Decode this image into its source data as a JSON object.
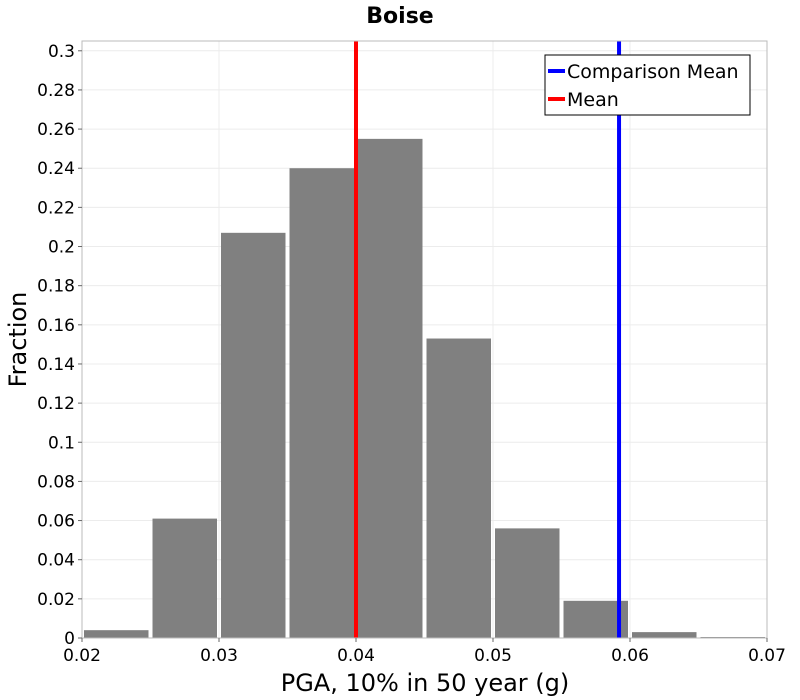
{
  "chart_data": {
    "type": "bar",
    "title": "Boise",
    "xlabel": "PGA, 10% in 50 year (g)",
    "ylabel": "Fraction",
    "xlim": [
      0.02,
      0.07
    ],
    "ylim": [
      0,
      0.305
    ],
    "xticks": [
      0.02,
      0.03,
      0.04,
      0.05,
      0.06,
      0.07
    ],
    "xtick_labels": [
      "0.02",
      "0.03",
      "0.04",
      "0.05",
      "0.06",
      "0.07"
    ],
    "yticks": [
      0,
      0.02,
      0.04,
      0.06,
      0.08,
      0.1,
      0.12,
      0.14,
      0.16,
      0.18,
      0.2,
      0.22,
      0.24,
      0.26,
      0.28,
      0.3
    ],
    "ytick_labels": [
      "0",
      "0.02",
      "0.04",
      "0.06",
      "0.08",
      "0.1",
      "0.12",
      "0.14",
      "0.16",
      "0.18",
      "0.2",
      "0.22",
      "0.24",
      "0.26",
      "0.28",
      "0.3"
    ],
    "bin_width": 0.005,
    "bins": [
      {
        "x": 0.0225,
        "value": 0.004
      },
      {
        "x": 0.0275,
        "value": 0.061
      },
      {
        "x": 0.0325,
        "value": 0.207
      },
      {
        "x": 0.0375,
        "value": 0.24
      },
      {
        "x": 0.0425,
        "value": 0.255
      },
      {
        "x": 0.0475,
        "value": 0.153
      },
      {
        "x": 0.0525,
        "value": 0.056
      },
      {
        "x": 0.0575,
        "value": 0.019
      },
      {
        "x": 0.0625,
        "value": 0.003
      },
      {
        "x": 0.0675,
        "value": 0.0005
      }
    ],
    "bar_color": "#808080",
    "lines": [
      {
        "name": "Comparison Mean",
        "x": 0.0592,
        "color": "#0000ff"
      },
      {
        "name": "Mean",
        "x": 0.04,
        "color": "#ff0000"
      }
    ],
    "legend_position": "top-right",
    "grid": true
  }
}
